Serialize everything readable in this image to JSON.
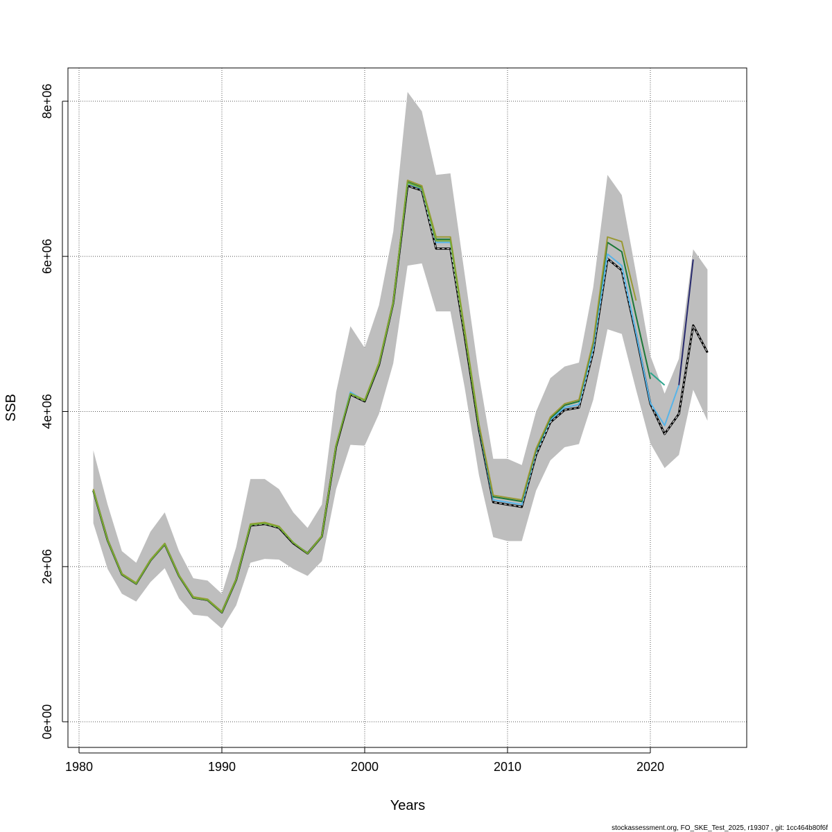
{
  "chart_data": {
    "type": "line",
    "xlabel": "Years",
    "ylabel": "SSB",
    "footer": "stockassessment.org, FO_SKE_Test_2025, r19307 , git: 1cc464b80f6f",
    "xlim": [
      1980,
      2026
    ],
    "ylim": [
      -200000,
      8400000
    ],
    "x_ticks": [
      1980,
      1990,
      2000,
      2010,
      2020
    ],
    "x_tick_labels": [
      "1980",
      "1990",
      "2000",
      "2010",
      "2020"
    ],
    "y_ticks": [
      0,
      2000000,
      4000000,
      6000000,
      8000000
    ],
    "y_tick_labels": [
      "0e+00",
      "2e+06",
      "4e+06",
      "6e+06",
      "8e+06"
    ],
    "grid": true,
    "band": {
      "color": "#bebebe",
      "x": [
        1981,
        1982,
        1983,
        1984,
        1985,
        1986,
        1987,
        1988,
        1989,
        1990,
        1991,
        1992,
        1993,
        1994,
        1995,
        1996,
        1997,
        1998,
        1999,
        2000,
        2001,
        2002,
        2003,
        2004,
        2005,
        2006,
        2007,
        2008,
        2009,
        2010,
        2011,
        2012,
        2013,
        2014,
        2015,
        2016,
        2017,
        2018,
        2019,
        2020,
        2021,
        2022,
        2023,
        2024
      ],
      "upper": [
        3500000,
        2800000,
        2200000,
        2050000,
        2450000,
        2700000,
        2200000,
        1850000,
        1820000,
        1650000,
        2250000,
        3130000,
        3130000,
        3000000,
        2700000,
        2500000,
        2800000,
        4250000,
        5100000,
        4820000,
        5370000,
        6320000,
        8120000,
        7870000,
        7050000,
        7070000,
        5770000,
        4470000,
        3390000,
        3390000,
        3310000,
        4000000,
        4430000,
        4580000,
        4630000,
        5600000,
        7050000,
        6790000,
        5780000,
        4720000,
        4230000,
        4680000,
        6090000,
        5830000
      ],
      "lower": [
        2560000,
        1970000,
        1650000,
        1550000,
        1800000,
        1980000,
        1590000,
        1380000,
        1360000,
        1200000,
        1500000,
        2050000,
        2100000,
        2090000,
        1970000,
        1880000,
        2070000,
        3000000,
        3570000,
        3560000,
        3970000,
        4620000,
        5880000,
        5910000,
        5290000,
        5290000,
        4310000,
        3180000,
        2380000,
        2330000,
        2330000,
        2980000,
        3370000,
        3540000,
        3580000,
        4150000,
        5060000,
        5000000,
        4280000,
        3590000,
        3270000,
        3440000,
        4280000,
        3880000
      ]
    },
    "series": [
      {
        "color": "#000000",
        "dashed": true,
        "x": [
          1981,
          1982,
          1983,
          1984,
          1985,
          1986,
          1987,
          1988,
          1989,
          1990,
          1991,
          1992,
          1993,
          1994,
          1995,
          1996,
          1997,
          1998,
          1999,
          2000,
          2001,
          2002,
          2003,
          2004,
          2005,
          2006,
          2007,
          2008,
          2009,
          2010,
          2011,
          2012,
          2013,
          2014,
          2015,
          2016,
          2017,
          2018,
          2019,
          2020,
          2021,
          2022,
          2023,
          2024
        ],
        "values": [
          2980000,
          2340000,
          1900000,
          1780000,
          2080000,
          2290000,
          1880000,
          1600000,
          1570000,
          1410000,
          1830000,
          2530000,
          2550000,
          2500000,
          2300000,
          2170000,
          2390000,
          3550000,
          4220000,
          4130000,
          4600000,
          5400000,
          6910000,
          6850000,
          6100000,
          6100000,
          4970000,
          3770000,
          2830000,
          2800000,
          2770000,
          3440000,
          3860000,
          4020000,
          4050000,
          4770000,
          5970000,
          5820000,
          4990000,
          4100000,
          3710000,
          3970000,
          5110000,
          4760000
        ]
      },
      {
        "color": "#56b4e9",
        "x": [
          1981,
          1982,
          1983,
          1984,
          1985,
          1986,
          1987,
          1988,
          1989,
          1990,
          1991,
          1992,
          1993,
          1994,
          1995,
          1996,
          1997,
          1998,
          1999,
          2000,
          2001,
          2002,
          2003,
          2004,
          2005,
          2006,
          2007,
          2008,
          2009,
          2010,
          2011,
          2012,
          2013,
          2014,
          2015,
          2016,
          2017,
          2018,
          2019,
          2020,
          2021,
          2022
        ],
        "values": [
          2980000,
          2340000,
          1900000,
          1780000,
          2080000,
          2290000,
          1880000,
          1600000,
          1570000,
          1410000,
          1830000,
          2540000,
          2560000,
          2510000,
          2310000,
          2170000,
          2390000,
          3560000,
          4250000,
          4140000,
          4610000,
          5400000,
          6940000,
          6870000,
          6180000,
          6180000,
          5020000,
          3800000,
          2860000,
          2830000,
          2800000,
          3480000,
          3890000,
          4050000,
          4090000,
          4820000,
          6030000,
          5880000,
          5010000,
          4110000,
          3820000,
          4340000
        ]
      },
      {
        "color": "#27296d",
        "x": [
          2022,
          2023
        ],
        "values": [
          4340000,
          5960000
        ]
      },
      {
        "color": "#2ca58d",
        "x": [
          2020,
          2021
        ],
        "values": [
          4500000,
          4340000
        ]
      },
      {
        "color": "#1b7837",
        "x": [
          1981,
          1982,
          1983,
          1984,
          1985,
          1986,
          1987,
          1988,
          1989,
          1990,
          1991,
          1992,
          1993,
          1994,
          1995,
          1996,
          1997,
          1998,
          1999,
          2000,
          2001,
          2002,
          2003,
          2004,
          2005,
          2006,
          2007,
          2008,
          2009,
          2010,
          2011,
          2012,
          2013,
          2014,
          2015,
          2016,
          2017,
          2018,
          2019,
          2020
        ],
        "values": [
          2990000,
          2340000,
          1900000,
          1780000,
          2080000,
          2290000,
          1880000,
          1600000,
          1570000,
          1410000,
          1830000,
          2540000,
          2560000,
          2510000,
          2310000,
          2170000,
          2390000,
          3560000,
          4230000,
          4140000,
          4620000,
          5410000,
          6960000,
          6890000,
          6220000,
          6220000,
          5030000,
          3810000,
          2900000,
          2870000,
          2840000,
          3500000,
          3910000,
          4080000,
          4130000,
          4880000,
          6180000,
          6060000,
          5230000,
          4420000
        ]
      },
      {
        "color": "#999933",
        "x": [
          1981,
          1982,
          1983,
          1984,
          1985,
          1986,
          1987,
          1988,
          1989,
          1990,
          1991,
          1992,
          1993,
          1994,
          1995,
          1996,
          1997,
          1998,
          1999,
          2000,
          2001,
          2002,
          2003,
          2004,
          2005,
          2006,
          2007,
          2008,
          2009,
          2010,
          2011,
          2012,
          2013,
          2014,
          2015,
          2016,
          2017,
          2018,
          2019
        ],
        "values": [
          3000000,
          2350000,
          1910000,
          1790000,
          2090000,
          2300000,
          1890000,
          1610000,
          1580000,
          1420000,
          1840000,
          2550000,
          2570000,
          2520000,
          2310000,
          2170000,
          2400000,
          3570000,
          4230000,
          4150000,
          4630000,
          5420000,
          6980000,
          6910000,
          6250000,
          6250000,
          5060000,
          3840000,
          2920000,
          2890000,
          2860000,
          3520000,
          3930000,
          4100000,
          4150000,
          4900000,
          6250000,
          6190000,
          5430000
        ]
      },
      {
        "color": "#77aa33",
        "x": [
          1981,
          1982,
          1983,
          1984,
          1985,
          1986,
          1987,
          1988,
          1989,
          1990,
          1991,
          1992,
          1993,
          1994,
          1995,
          1996,
          1997,
          1998,
          1999,
          2000,
          2001,
          2002,
          2003,
          2004,
          2005,
          2006,
          2007,
          2008
        ],
        "values": [
          2980000,
          2340000,
          1900000,
          1780000,
          2080000,
          2290000,
          1880000,
          1600000,
          1570000,
          1410000,
          1830000,
          2540000,
          2560000,
          2510000,
          2310000,
          2170000,
          2390000,
          3560000,
          4230000,
          4140000,
          4610000,
          5400000,
          6950000,
          6880000,
          6200000,
          6200000,
          5010000,
          3800000
        ]
      }
    ]
  }
}
